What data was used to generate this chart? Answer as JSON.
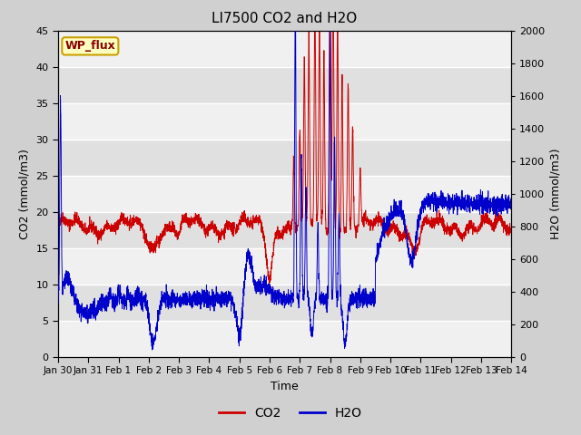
{
  "title": "LI7500 CO2 and H2O",
  "xlabel": "Time",
  "ylabel_left": "CO2 (mmol/m3)",
  "ylabel_right": "H2O (mmol/m3)",
  "ylim_left": [
    0,
    45
  ],
  "ylim_right": [
    0,
    2000
  ],
  "co2_color": "#cc0000",
  "h2o_color": "#0000cc",
  "fig_bg_color": "#d0d0d0",
  "plot_bg_color": "#ffffff",
  "grid_color": "#d8d8d8",
  "annotation_text": "WP_flux",
  "annotation_box_color": "#ffffc0",
  "annotation_box_edge": "#c8a000",
  "annotation_text_color": "#880000",
  "x_tick_labels": [
    "Jan 30",
    "Jan 31",
    "Feb 1",
    "Feb 2",
    "Feb 3",
    "Feb 4",
    "Feb 5",
    "Feb 6",
    "Feb 7",
    "Feb 8",
    "Feb 9",
    "Feb 10",
    "Feb 11",
    "Feb 12",
    "Feb 13",
    "Feb 14"
  ],
  "n_points": 3000,
  "seed": 42
}
